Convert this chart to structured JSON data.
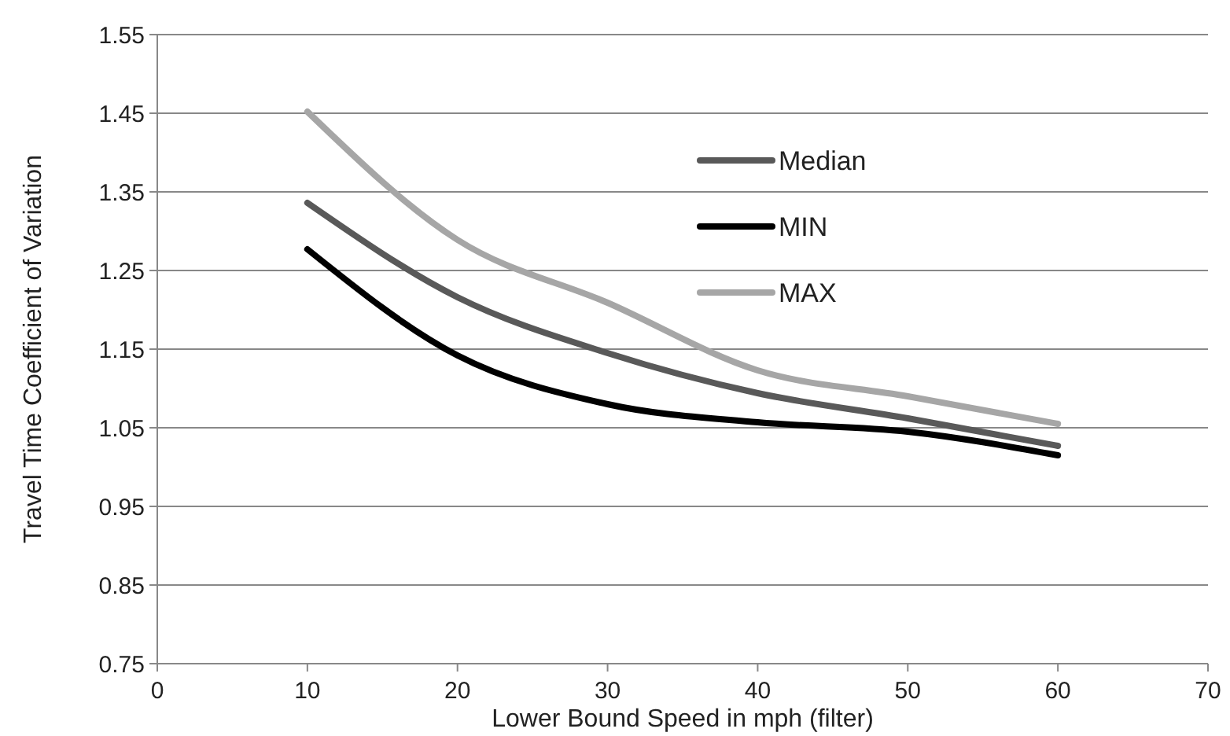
{
  "chart_data": {
    "type": "line",
    "xlabel": "Lower Bound Speed in mph (filter)",
    "ylabel": "Travel Time Coefficient of Variation",
    "x": [
      10,
      20,
      30,
      40,
      50,
      60
    ],
    "series": [
      {
        "name": "Median",
        "color": "#595959",
        "values": [
          1.336,
          1.216,
          1.145,
          1.094,
          1.062,
          1.027
        ]
      },
      {
        "name": "MIN",
        "color": "#000000",
        "values": [
          1.277,
          1.142,
          1.08,
          1.057,
          1.045,
          1.015
        ]
      },
      {
        "name": "MAX",
        "color": "#a6a6a6",
        "values": [
          1.452,
          1.289,
          1.209,
          1.123,
          1.09,
          1.055
        ]
      }
    ],
    "xlim": [
      0,
      70
    ],
    "xticks": [
      0,
      10,
      20,
      30,
      40,
      50,
      60,
      70
    ],
    "ylim": [
      0.75,
      1.55
    ],
    "yticks": [
      {
        "value": 0.75,
        "label": "0.75"
      },
      {
        "value": 0.85,
        "label": "0.85"
      },
      {
        "value": 0.95,
        "label": "0.95"
      },
      {
        "value": 1.05,
        "label": "1.05"
      },
      {
        "value": 1.15,
        "label": "1.15"
      },
      {
        "value": 1.25,
        "label": "1.25"
      },
      {
        "value": 1.35,
        "label": "1.35"
      },
      {
        "value": 1.45,
        "label": "1.45"
      },
      {
        "value": 1.55,
        "label": "1.55"
      }
    ],
    "grid": "y",
    "legend": "top right",
    "marker": "none",
    "line_style": "solid"
  }
}
